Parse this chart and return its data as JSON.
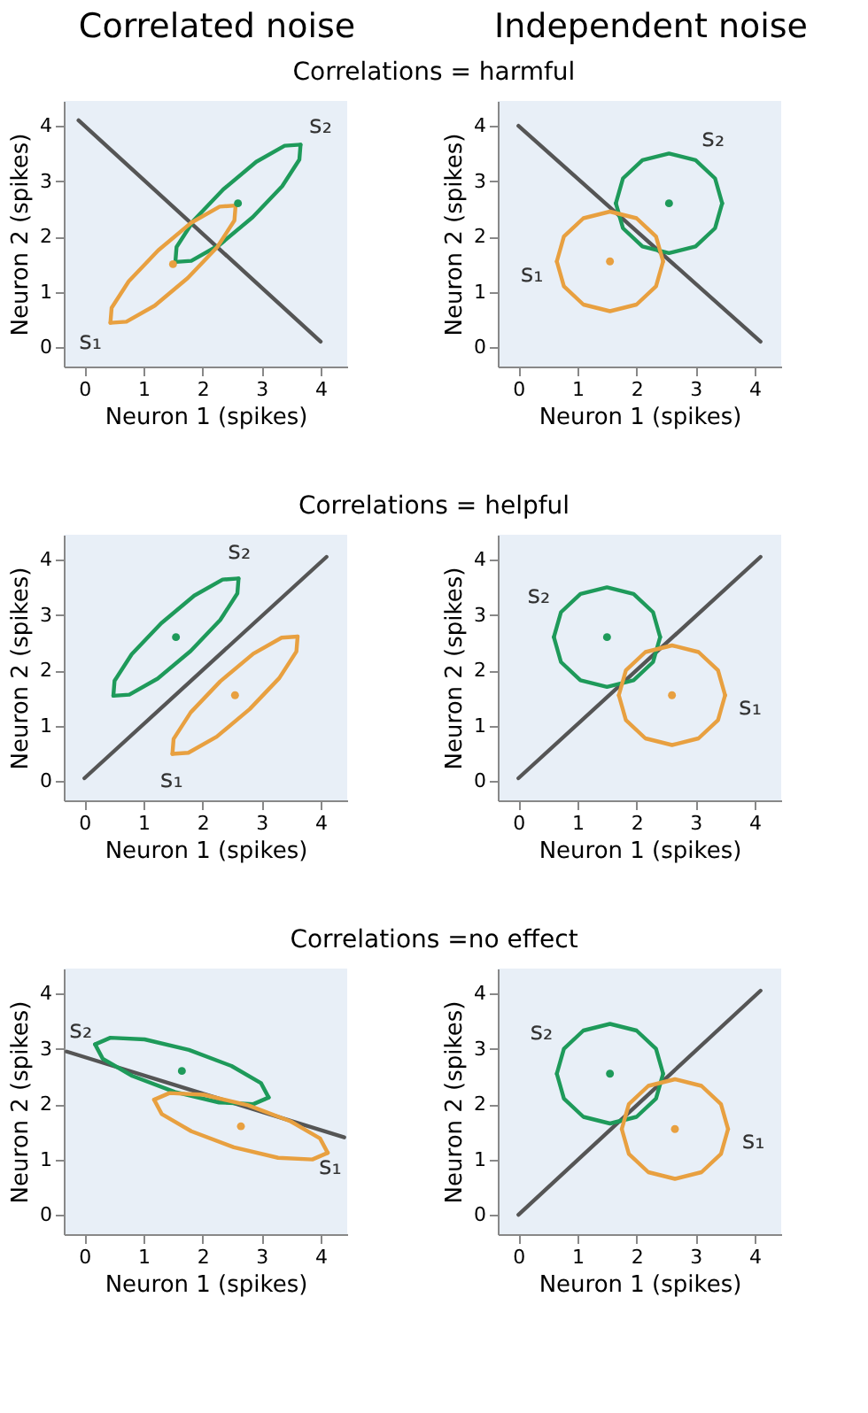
{
  "chart_data": [
    {
      "type": "line",
      "title": "Correlated noise",
      "subtitle": "Correlations = harmful",
      "xlabel": "Neuron 1 (spikes)",
      "ylabel": "Neuron 2 (spikes)",
      "xlim": [
        -0.35,
        4.45
      ],
      "ylim": [
        -0.35,
        4.45
      ],
      "xticks": [
        0,
        1,
        2,
        3,
        4
      ],
      "yticks": [
        0,
        1,
        2,
        3,
        4
      ],
      "series": [
        {
          "color": "#555555",
          "x": [
            -0.1,
            4.0
          ],
          "values": [
            4.1,
            0.1
          ]
        },
        {
          "name": "s₂",
          "color": "#1e9a5a",
          "x": [
            1.54,
            1.56,
            1.85,
            2.35,
            2.91,
            3.39,
            3.66
          ],
          "values": [
            1.54,
            1.81,
            2.29,
            2.85,
            3.35,
            3.64,
            3.66
          ]
        },
        {
          "color": "#1e9a5a",
          "x": [
            1.54,
            1.81,
            2.29,
            2.85,
            3.35,
            3.64,
            3.66
          ],
          "values": [
            1.54,
            1.56,
            1.85,
            2.35,
            2.91,
            3.39,
            3.66
          ]
        },
        {
          "name": "s₁",
          "color": "#e8a040",
          "x": [
            0.44,
            0.46,
            0.75,
            1.25,
            1.81,
            2.29,
            2.56
          ],
          "values": [
            0.44,
            0.71,
            1.19,
            1.75,
            2.25,
            2.54,
            2.56
          ]
        },
        {
          "color": "#e8a040",
          "x": [
            0.44,
            0.71,
            1.19,
            1.75,
            2.25,
            2.54,
            2.56
          ],
          "values": [
            0.44,
            0.46,
            0.75,
            1.25,
            1.81,
            2.29,
            2.56
          ]
        },
        {
          "type": "scatter",
          "color": "#1e9a5a",
          "x": [
            2.6
          ],
          "values": [
            2.6
          ]
        },
        {
          "type": "scatter",
          "color": "#e8a040",
          "x": [
            1.5
          ],
          "values": [
            1.5
          ]
        }
      ]
    },
    {
      "type": "line",
      "title": "Independent noise",
      "xlabel": "Neuron 1 (spikes)",
      "ylabel": "Neuron 2 (spikes)",
      "xlim": [
        -0.35,
        4.45
      ],
      "ylim": [
        -0.35,
        4.45
      ],
      "xticks": [
        0,
        1,
        2,
        3,
        4
      ],
      "yticks": [
        0,
        1,
        2,
        3,
        4
      ],
      "series": [
        {
          "color": "#555555",
          "x": [
            0.0,
            4.1
          ],
          "values": [
            4.0,
            0.1
          ]
        },
        {
          "name": "s₂",
          "color": "#1e9a5a",
          "x": [
            1.65,
            1.77,
            2.1,
            2.55,
            3.0,
            3.33,
            3.45
          ],
          "values": [
            2.6,
            3.05,
            3.38,
            3.5,
            3.38,
            3.05,
            2.6
          ]
        },
        {
          "color": "#1e9a5a",
          "x": [
            1.65,
            1.77,
            2.1,
            2.55,
            3.0,
            3.33,
            3.45
          ],
          "values": [
            2.6,
            2.15,
            1.82,
            1.7,
            1.82,
            2.15,
            2.6
          ]
        },
        {
          "name": "s₁",
          "color": "#e8a040",
          "x": [
            0.65,
            0.77,
            1.1,
            1.55,
            2.0,
            2.33,
            2.45
          ],
          "values": [
            1.55,
            2.0,
            2.33,
            2.45,
            2.33,
            2.0,
            1.55
          ]
        },
        {
          "color": "#e8a040",
          "x": [
            0.65,
            0.77,
            1.1,
            1.55,
            2.0,
            2.33,
            2.45
          ],
          "values": [
            1.55,
            1.1,
            0.77,
            0.65,
            0.77,
            1.1,
            1.55
          ]
        },
        {
          "type": "scatter",
          "color": "#1e9a5a",
          "x": [
            2.55
          ],
          "values": [
            2.6
          ]
        },
        {
          "type": "scatter",
          "color": "#e8a040",
          "x": [
            1.55
          ],
          "values": [
            1.55
          ]
        }
      ]
    },
    {
      "type": "line",
      "subtitle": "Correlations = helpful",
      "xlabel": "Neuron 1 (spikes)",
      "ylabel": "Neuron 2 (spikes)",
      "xlim": [
        -0.35,
        4.45
      ],
      "ylim": [
        -0.35,
        4.45
      ],
      "xticks": [
        0,
        1,
        2,
        3,
        4
      ],
      "yticks": [
        0,
        1,
        2,
        3,
        4
      ],
      "series": [
        {
          "color": "#555555",
          "x": [
            0.0,
            4.1
          ],
          "values": [
            0.05,
            4.05
          ]
        },
        {
          "name": "s₂",
          "color": "#1e9a5a",
          "x": [
            0.49,
            0.51,
            0.8,
            1.3,
            1.86,
            2.34,
            2.61
          ],
          "values": [
            1.54,
            1.81,
            2.29,
            2.85,
            3.35,
            3.64,
            3.66
          ]
        },
        {
          "color": "#1e9a5a",
          "x": [
            0.49,
            0.76,
            1.24,
            1.8,
            2.3,
            2.59,
            2.61
          ],
          "values": [
            1.54,
            1.56,
            1.85,
            2.35,
            2.91,
            3.39,
            3.66
          ]
        },
        {
          "name": "s₁",
          "color": "#e8a040",
          "x": [
            1.49,
            1.51,
            1.8,
            2.3,
            2.86,
            3.34,
            3.61
          ],
          "values": [
            0.49,
            0.76,
            1.24,
            1.8,
            2.3,
            2.59,
            2.61
          ]
        },
        {
          "color": "#e8a040",
          "x": [
            1.49,
            1.76,
            2.24,
            2.8,
            3.3,
            3.59,
            3.61
          ],
          "values": [
            0.49,
            0.51,
            0.8,
            1.3,
            1.86,
            2.34,
            2.61
          ]
        },
        {
          "type": "scatter",
          "color": "#1e9a5a",
          "x": [
            1.55
          ],
          "values": [
            2.6
          ]
        },
        {
          "type": "scatter",
          "color": "#e8a040",
          "x": [
            2.55
          ],
          "values": [
            1.55
          ]
        }
      ]
    },
    {
      "type": "line",
      "xlabel": "Neuron 1 (spikes)",
      "ylabel": "Neuron 2 (spikes)",
      "xlim": [
        -0.35,
        4.45
      ],
      "ylim": [
        -0.35,
        4.45
      ],
      "xticks": [
        0,
        1,
        2,
        3,
        4
      ],
      "yticks": [
        0,
        1,
        2,
        3,
        4
      ],
      "series": [
        {
          "color": "#555555",
          "x": [
            0.0,
            4.1
          ],
          "values": [
            0.05,
            4.05
          ]
        },
        {
          "name": "s₂",
          "color": "#1e9a5a",
          "x": [
            0.6,
            0.72,
            1.05,
            1.5,
            1.95,
            2.28,
            2.4
          ],
          "values": [
            2.6,
            3.05,
            3.38,
            3.5,
            3.38,
            3.05,
            2.6
          ]
        },
        {
          "color": "#1e9a5a",
          "x": [
            0.6,
            0.72,
            1.05,
            1.5,
            1.95,
            2.28,
            2.4
          ],
          "values": [
            2.6,
            2.15,
            1.82,
            1.7,
            1.82,
            2.15,
            2.6
          ]
        },
        {
          "name": "s₁",
          "color": "#e8a040",
          "x": [
            1.7,
            1.82,
            2.15,
            2.6,
            3.05,
            3.38,
            3.5
          ],
          "values": [
            1.55,
            2.0,
            2.33,
            2.45,
            2.33,
            2.0,
            1.55
          ]
        },
        {
          "color": "#e8a040",
          "x": [
            1.7,
            1.82,
            2.15,
            2.6,
            3.05,
            3.38,
            3.5
          ],
          "values": [
            1.55,
            1.1,
            0.77,
            0.65,
            0.77,
            1.1,
            1.55
          ]
        },
        {
          "type": "scatter",
          "color": "#1e9a5a",
          "x": [
            1.5
          ],
          "values": [
            2.6
          ]
        },
        {
          "type": "scatter",
          "color": "#e8a040",
          "x": [
            2.6
          ],
          "values": [
            1.55
          ]
        }
      ]
    },
    {
      "type": "line",
      "subtitle": "Correlations =no effect",
      "xlabel": "Neuron 1 (spikes)",
      "ylabel": "Neuron 2 (spikes)",
      "xlim": [
        -0.35,
        4.45
      ],
      "ylim": [
        -0.35,
        4.45
      ],
      "xticks": [
        0,
        1,
        2,
        3,
        4
      ],
      "yticks": [
        0,
        1,
        2,
        3,
        4
      ],
      "series": [
        {
          "color": "#555555",
          "x": [
            -0.3,
            4.4
          ],
          "values": [
            2.95,
            1.4
          ]
        },
        {
          "name": "s₂",
          "color": "#1e9a5a",
          "x": [
            0.18,
            0.44,
            1.02,
            1.77,
            2.49,
            2.99,
            3.12
          ],
          "values": [
            3.08,
            3.2,
            3.17,
            2.98,
            2.69,
            2.38,
            2.12
          ]
        },
        {
          "color": "#1e9a5a",
          "x": [
            0.18,
            0.31,
            0.81,
            1.53,
            2.28,
            2.86,
            3.12
          ],
          "values": [
            3.08,
            2.82,
            2.51,
            2.22,
            2.03,
            2.0,
            2.12
          ]
        },
        {
          "name": "s₁",
          "color": "#e8a040",
          "x": [
            1.18,
            1.44,
            2.02,
            2.77,
            3.49,
            3.99,
            4.12
          ],
          "values": [
            2.08,
            2.2,
            2.17,
            1.98,
            1.69,
            1.38,
            1.12
          ]
        },
        {
          "color": "#e8a040",
          "x": [
            1.18,
            1.31,
            1.81,
            2.53,
            3.28,
            3.86,
            4.12
          ],
          "values": [
            2.08,
            1.82,
            1.51,
            1.22,
            1.03,
            1.0,
            1.12
          ]
        },
        {
          "type": "scatter",
          "color": "#1e9a5a",
          "x": [
            1.65
          ],
          "values": [
            2.6
          ]
        },
        {
          "type": "scatter",
          "color": "#e8a040",
          "x": [
            2.65
          ],
          "values": [
            1.6
          ]
        }
      ]
    },
    {
      "type": "line",
      "xlabel": "Neuron 1 (spikes)",
      "ylabel": "Neuron 2 (spikes)",
      "xlim": [
        -0.35,
        4.45
      ],
      "ylim": [
        -0.35,
        4.45
      ],
      "xticks": [
        0,
        1,
        2,
        3,
        4
      ],
      "yticks": [
        0,
        1,
        2,
        3,
        4
      ],
      "series": [
        {
          "color": "#555555",
          "x": [
            0.0,
            4.1
          ],
          "values": [
            0.0,
            4.05
          ]
        },
        {
          "name": "s₂",
          "color": "#1e9a5a",
          "x": [
            0.65,
            0.77,
            1.1,
            1.55,
            2.0,
            2.33,
            2.45
          ],
          "values": [
            2.55,
            3.0,
            3.33,
            3.45,
            3.33,
            3.0,
            2.55
          ]
        },
        {
          "color": "#1e9a5a",
          "x": [
            0.65,
            0.77,
            1.1,
            1.55,
            2.0,
            2.33,
            2.45
          ],
          "values": [
            2.55,
            2.1,
            1.77,
            1.65,
            1.77,
            2.1,
            2.55
          ]
        },
        {
          "name": "s₁",
          "color": "#e8a040",
          "x": [
            1.75,
            1.87,
            2.2,
            2.65,
            3.1,
            3.43,
            3.55
          ],
          "values": [
            1.55,
            2.0,
            2.33,
            2.45,
            2.33,
            2.0,
            1.55
          ]
        },
        {
          "color": "#e8a040",
          "x": [
            1.75,
            1.87,
            2.2,
            2.65,
            3.1,
            3.43,
            3.55
          ],
          "values": [
            1.55,
            1.1,
            0.77,
            0.65,
            0.77,
            1.1,
            1.55
          ]
        },
        {
          "type": "scatter",
          "color": "#1e9a5a",
          "x": [
            1.55
          ],
          "values": [
            2.55
          ]
        },
        {
          "type": "scatter",
          "color": "#e8a040",
          "x": [
            2.65
          ],
          "values": [
            1.55
          ]
        }
      ]
    }
  ]
}
